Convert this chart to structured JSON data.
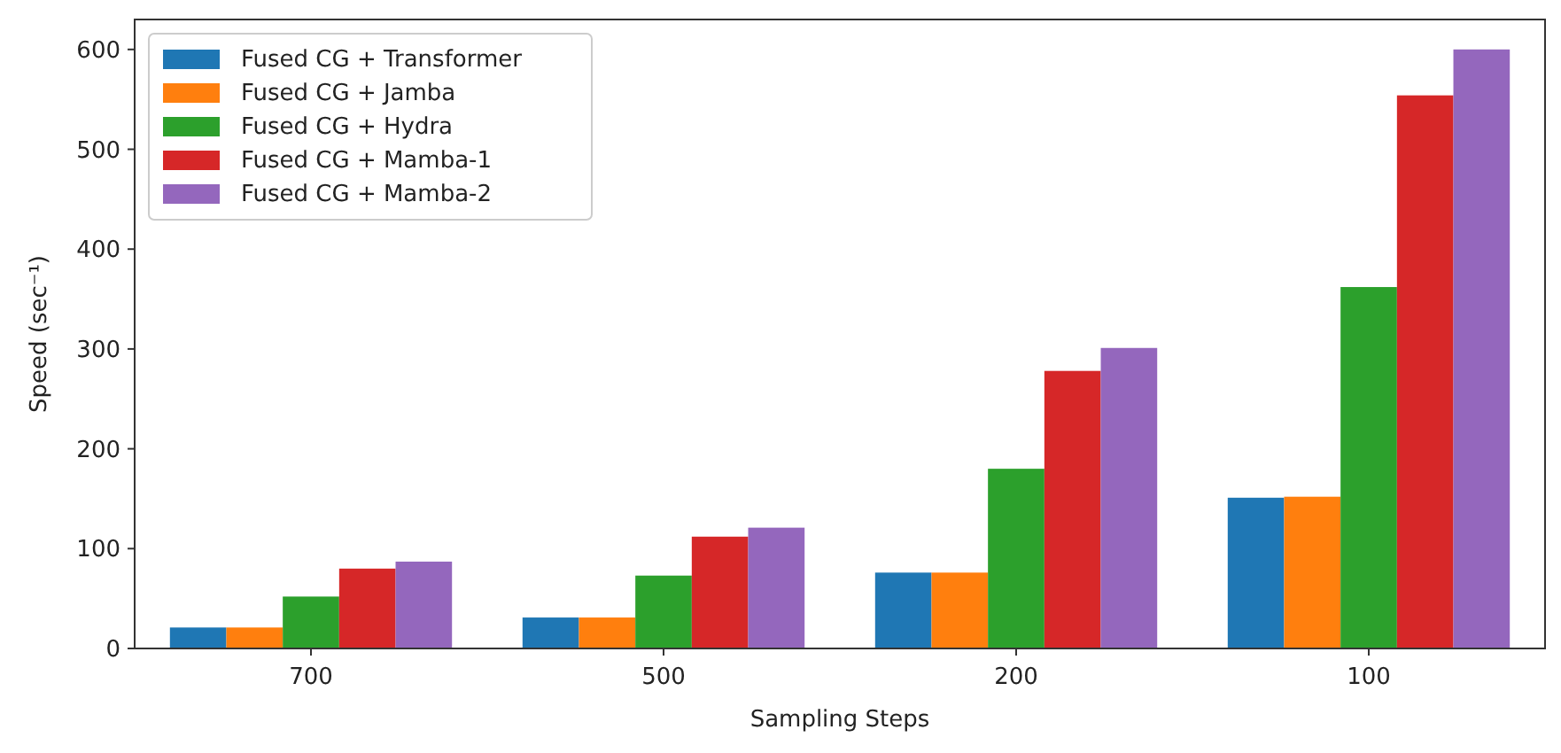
{
  "chart_data": {
    "type": "bar",
    "xlabel": "Sampling Steps",
    "ylabel": "Speed (sec⁻¹)",
    "categories": [
      "700",
      "500",
      "200",
      "100"
    ],
    "series": [
      {
        "name": "Fused CG + Transformer",
        "color": "#1f77b4",
        "values": [
          21,
          31,
          76,
          151
        ]
      },
      {
        "name": "Fused CG + Jamba",
        "color": "#ff7f0e",
        "values": [
          21,
          31,
          76,
          152
        ]
      },
      {
        "name": "Fused CG + Hydra",
        "color": "#2ca02c",
        "values": [
          52,
          73,
          180,
          362
        ]
      },
      {
        "name": "Fused CG + Mamba-1",
        "color": "#d62728",
        "values": [
          80,
          112,
          278,
          554
        ]
      },
      {
        "name": "Fused CG + Mamba-2",
        "color": "#9467bd",
        "values": [
          87,
          121,
          301,
          600
        ]
      }
    ],
    "ylim": [
      0,
      630
    ],
    "yticks": [
      0,
      100,
      200,
      300,
      400,
      500,
      600
    ],
    "legend": "top left",
    "grid": false
  }
}
